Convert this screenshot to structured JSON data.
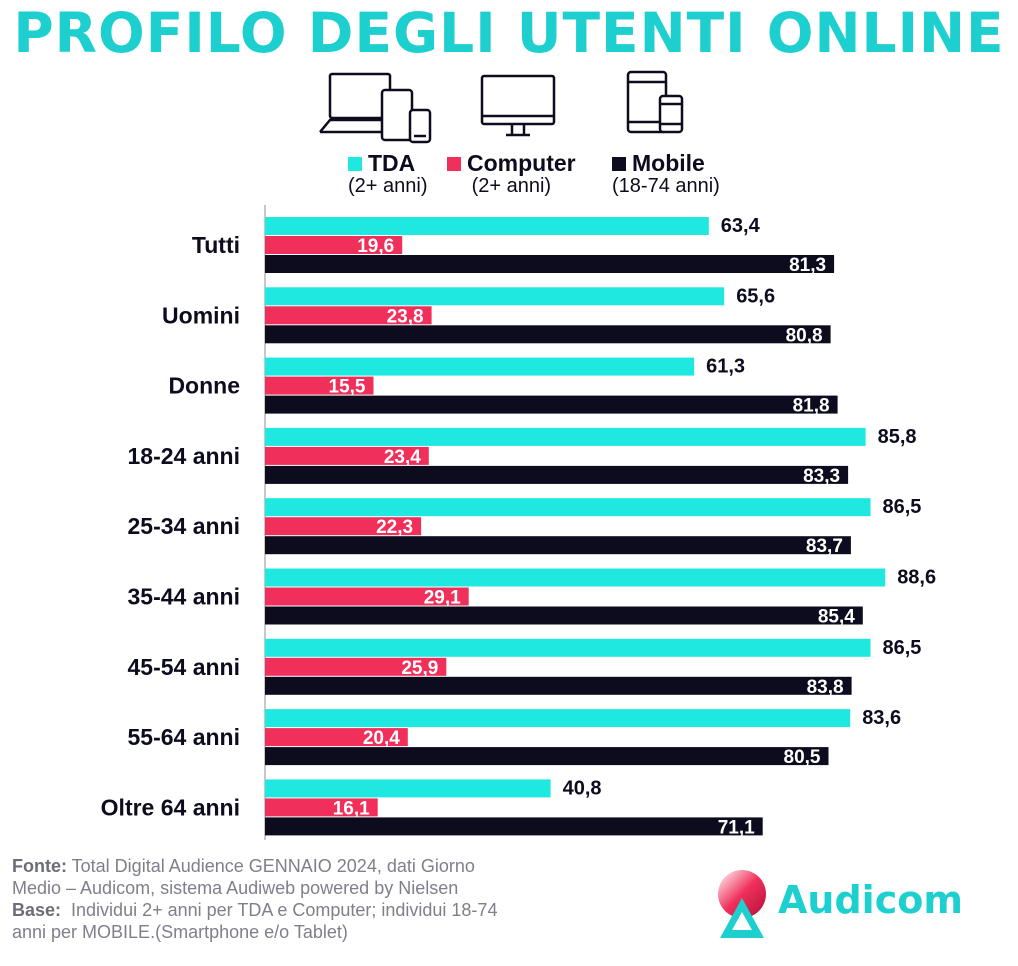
{
  "title": "PROFILO DEGLI UTENTI ONLINE",
  "icons": [
    "laptop-tablet-phone-icon",
    "monitor-icon",
    "tablet-phone-icon"
  ],
  "legend": [
    {
      "name": "TDA",
      "sub": "(2+ anni)",
      "color": "#1ee8e0"
    },
    {
      "name": "Computer",
      "sub": "(2+ anni)",
      "color": "#f0305a"
    },
    {
      "name": "Mobile",
      "sub": "(18-74 anni)",
      "color": "#0c0c1e"
    }
  ],
  "chart_data": {
    "type": "bar",
    "orientation": "horizontal",
    "categories": [
      "Tutti",
      "Uomini",
      "Donne",
      "18-24 anni",
      "25-34 anni",
      "35-44 anni",
      "45-54 anni",
      "55-64 anni",
      "Oltre 64 anni"
    ],
    "series": [
      {
        "name": "TDA",
        "color": "#1ee8e0",
        "values": [
          63.4,
          65.6,
          61.3,
          85.8,
          86.5,
          88.6,
          86.5,
          83.6,
          40.8
        ]
      },
      {
        "name": "Computer",
        "color": "#f0305a",
        "values": [
          19.6,
          23.8,
          15.5,
          23.4,
          22.3,
          29.1,
          25.9,
          20.4,
          16.1
        ]
      },
      {
        "name": "Mobile",
        "color": "#0c0c1e",
        "values": [
          81.3,
          80.8,
          81.8,
          83.3,
          83.7,
          85.4,
          83.8,
          80.5,
          71.1
        ]
      }
    ],
    "labels": [
      [
        "63,4",
        "19,6",
        "81,3"
      ],
      [
        "65,6",
        "23,8",
        "80,8"
      ],
      [
        "61,3",
        "15,5",
        "81,8"
      ],
      [
        "85,8",
        "23,4",
        "83,3"
      ],
      [
        "86,5",
        "22,3",
        "83,7"
      ],
      [
        "88,6",
        "29,1",
        "85,4"
      ],
      [
        "86,5",
        "25,9",
        "83,8"
      ],
      [
        "83,6",
        "20,4",
        "80,5"
      ],
      [
        "40,8",
        "16,1",
        "71,1"
      ]
    ],
    "xlim": [
      0,
      100
    ],
    "grid": false,
    "legend_position": "top"
  },
  "footer": {
    "fonte_label": "Fonte:",
    "fonte_line1": " Total Digital Audience GENNAIO 2024, dati Giorno",
    "fonte_line2": "Medio – Audicom, sistema Audiweb powered by Nielsen",
    "base_label": "Base:",
    "base_line1": "  Individui 2+ anni per TDA e Computer; individui 18-74",
    "base_line2": "anni per MOBILE.(Smartphone e/o Tablet)"
  },
  "logo": {
    "text": "Audicom"
  }
}
